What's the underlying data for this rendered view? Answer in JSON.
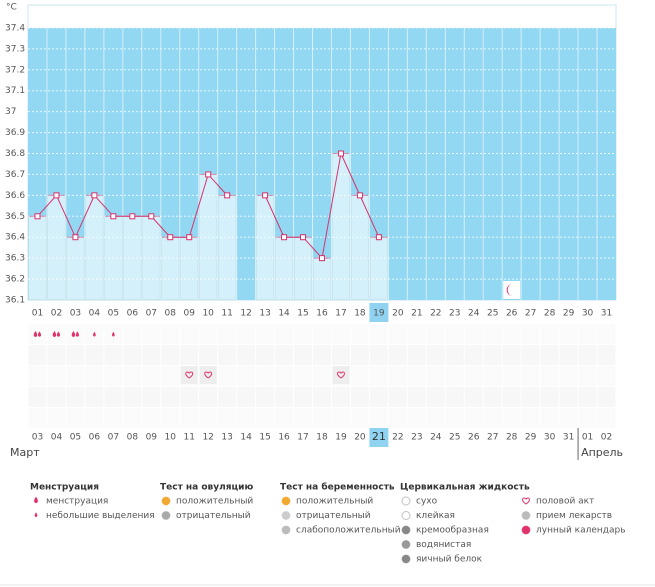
{
  "chart_data": {
    "type": "line",
    "unit_label": "°C",
    "categories": [
      "01",
      "02",
      "03",
      "04",
      "05",
      "06",
      "07",
      "08",
      "09",
      "10",
      "11",
      "12",
      "13",
      "14",
      "15",
      "16",
      "17",
      "18",
      "19",
      "20",
      "21",
      "22",
      "23",
      "24",
      "25",
      "26",
      "27",
      "28",
      "29",
      "30",
      "31"
    ],
    "values": [
      36.5,
      36.6,
      36.4,
      36.6,
      36.5,
      36.5,
      36.5,
      36.4,
      36.4,
      36.7,
      36.6,
      null,
      36.6,
      36.4,
      36.4,
      36.3,
      36.8,
      36.6,
      36.4,
      null,
      null,
      null,
      null,
      null,
      null,
      null,
      null,
      null,
      null,
      null,
      null
    ],
    "ylim": [
      36.1,
      37.5
    ],
    "yticks": [
      36.1,
      36.2,
      36.3,
      36.4,
      36.5,
      36.6,
      36.7,
      36.8,
      36.9,
      37,
      37.1,
      37.2,
      37.3,
      37.4
    ],
    "grid": true,
    "line_color": "#d6336c",
    "bar_color": "#d4f0fb",
    "background_color": "#93d8f2",
    "highlight_color": "#8fd3f0",
    "highlight_day": 18,
    "dates": [
      "03",
      "04",
      "05",
      "06",
      "07",
      "08",
      "09",
      "10",
      "11",
      "12",
      "13",
      "14",
      "15",
      "16",
      "17",
      "18",
      "19",
      "20",
      "21",
      "22",
      "23",
      "24",
      "25",
      "26",
      "27",
      "28",
      "29",
      "30",
      "31",
      "01",
      "02"
    ],
    "weekend_date_indices": [
      5,
      6,
      12,
      13,
      19,
      20,
      26,
      27
    ],
    "weekend_color": "#d6336c",
    "highlight_date": 18,
    "months": [
      {
        "label": "Март",
        "start": 0
      },
      {
        "label": "Апрель",
        "start": 29
      }
    ],
    "symbols": {
      "menstruation": [
        0,
        1,
        2
      ],
      "spotting": [
        3,
        4
      ],
      "intercourse": [
        8,
        9,
        16
      ],
      "lunar": [
        25
      ]
    }
  },
  "legend": {
    "groups": [
      {
        "title": "Менструация",
        "items": [
          "менструация",
          "небольшие выделения"
        ]
      },
      {
        "title": "Тест на овуляцию",
        "items": [
          "положительный",
          "отрицательный"
        ]
      },
      {
        "title": "Тест на беременность",
        "items": [
          "положительный",
          "отрицательный",
          "слабоположительный"
        ]
      },
      {
        "title": "Цервикальная жидкость",
        "items": [
          "сухо",
          "клейкая",
          "кремообразная",
          "водянистая",
          "яичный белок"
        ]
      },
      {
        "items": [
          "половой акт",
          "прием лекарств",
          "лунный календарь"
        ]
      }
    ]
  }
}
